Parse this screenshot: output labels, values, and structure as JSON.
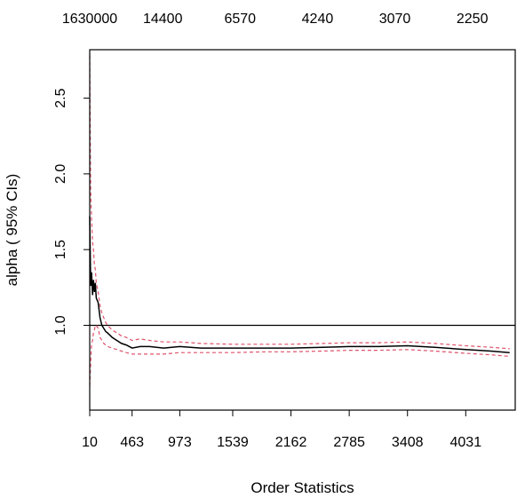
{
  "chart_data": {
    "type": "line",
    "title": "",
    "xlabel": "Order Statistics",
    "ylabel": "alpha ( 95% CIs)",
    "xlim": [
      10,
      4560
    ],
    "ylim": [
      0.44,
      2.82
    ],
    "grid": false,
    "legend": "none",
    "x_ticks": [
      10,
      463,
      973,
      1539,
      2162,
      2785,
      3408,
      4031
    ],
    "y_ticks": [
      1.0,
      1.5,
      2.0,
      2.5
    ],
    "y_tick_labels": [
      "1.0",
      "1.5",
      "2.0",
      "2.5"
    ],
    "top_axis": {
      "positions": [
        10,
        791,
        1618,
        2446,
        3273,
        4101
      ],
      "labels": [
        "1630000",
        "14400",
        "6570",
        "4240",
        "3070",
        "2250"
      ]
    },
    "reference_line": {
      "y": 1.0
    },
    "colors": {
      "estimate": "#000000",
      "ci": "#df536b",
      "frame": "#000000"
    },
    "series": [
      {
        "role": "estimate",
        "style": "solid",
        "x": [
          10,
          20,
          30,
          40,
          50,
          60,
          70,
          80,
          100,
          120,
          140,
          160,
          180,
          200,
          250,
          300,
          350,
          400,
          463,
          550,
          650,
          800,
          973,
          1200,
          1539,
          1900,
          2162,
          2500,
          2785,
          3100,
          3408,
          3700,
          4031,
          4300,
          4500
        ],
        "y": [
          1.72,
          1.26,
          1.35,
          1.2,
          1.3,
          1.22,
          1.28,
          1.18,
          1.15,
          1.05,
          1.0,
          0.98,
          0.96,
          0.95,
          0.92,
          0.9,
          0.88,
          0.87,
          0.85,
          0.86,
          0.86,
          0.85,
          0.86,
          0.85,
          0.85,
          0.85,
          0.85,
          0.855,
          0.86,
          0.86,
          0.865,
          0.855,
          0.84,
          0.83,
          0.82
        ]
      },
      {
        "role": "ci_95_upper",
        "style": "dashed",
        "x": [
          10,
          20,
          30,
          40,
          50,
          60,
          70,
          80,
          100,
          120,
          140,
          160,
          180,
          200,
          250,
          300,
          350,
          400,
          463,
          550,
          650,
          800,
          973,
          1200,
          1539,
          1900,
          2162,
          2500,
          2785,
          3100,
          3408,
          3700,
          4031,
          4300,
          4500
        ],
        "y": [
          2.78,
          1.88,
          1.7,
          1.55,
          1.5,
          1.4,
          1.37,
          1.28,
          1.22,
          1.13,
          1.08,
          1.05,
          1.02,
          1.0,
          0.97,
          0.95,
          0.93,
          0.92,
          0.9,
          0.91,
          0.9,
          0.89,
          0.89,
          0.88,
          0.875,
          0.875,
          0.875,
          0.88,
          0.885,
          0.885,
          0.89,
          0.88,
          0.865,
          0.855,
          0.845
        ]
      },
      {
        "role": "ci_95_lower",
        "style": "dashed",
        "x": [
          10,
          20,
          30,
          40,
          50,
          60,
          70,
          80,
          100,
          120,
          140,
          160,
          180,
          200,
          250,
          300,
          350,
          400,
          463,
          550,
          650,
          800,
          973,
          1200,
          1539,
          1900,
          2162,
          2500,
          2785,
          3100,
          3408,
          3700,
          4031,
          4300,
          4500
        ],
        "y": [
          0.6,
          0.75,
          0.88,
          0.9,
          0.95,
          0.97,
          1.0,
          1.0,
          0.98,
          0.92,
          0.9,
          0.88,
          0.87,
          0.86,
          0.85,
          0.84,
          0.83,
          0.82,
          0.81,
          0.81,
          0.81,
          0.81,
          0.82,
          0.82,
          0.82,
          0.825,
          0.825,
          0.83,
          0.835,
          0.835,
          0.84,
          0.83,
          0.815,
          0.805,
          0.795
        ]
      }
    ]
  }
}
